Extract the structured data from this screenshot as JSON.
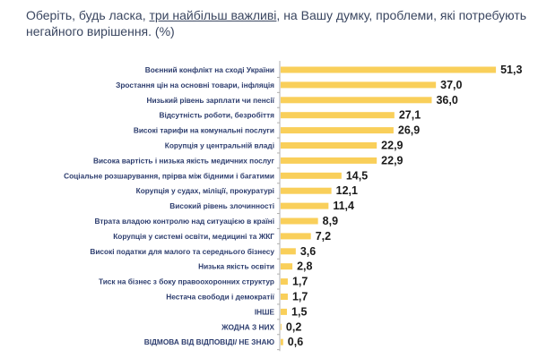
{
  "chart_data": {
    "type": "bar",
    "orientation": "horizontal",
    "title_parts": [
      "Оберіть, будь ласка, ",
      "три найбільш важливі",
      ", на Вашу думку, проблеми, які потребують негайного вирішення. (%)"
    ],
    "categories": [
      "Воєнний конфлікт на сході України",
      "Зростання цін на основні товари, інфляція",
      "Низький рівень зарплати чи пенсії",
      "Відсутність роботи, безробіття",
      "Високі тарифи на комунальні послуги",
      "Корупція у центральній владі",
      "Висока вартість і низька якість медичних послуг",
      "Соціальне розшарування, прірва між бідними і багатими",
      "Корупція у судах, міліції, прокуратурі",
      "Високий рівень злочинності",
      "Втрата владою контролю над ситуацією в країні",
      "Корупція у системі освіти, медицині та ЖКГ",
      "Високі податки для малого та середнього бізнесу",
      "Низька якість освіти",
      "Тиск на бізнес з боку правоохоронних структур",
      "Нестача свободи і демократії",
      "ІНШЕ",
      "ЖОДНА З НИХ",
      "ВІДМОВА ВІД ВІДПОВІДІ/ НЕ ЗНАЮ"
    ],
    "values": [
      51.3,
      37.0,
      36.0,
      27.1,
      26.9,
      22.9,
      22.9,
      14.5,
      12.1,
      11.4,
      8.9,
      7.2,
      3.6,
      2.8,
      1.7,
      1.7,
      1.5,
      0.2,
      0.6
    ],
    "value_labels": [
      "51,3",
      "37,0",
      "36,0",
      "27,1",
      "26,9",
      "22,9",
      "22,9",
      "14,5",
      "12,1",
      "11,4",
      "8,9",
      "7,2",
      "3,6",
      "2,8",
      "1,7",
      "1,7",
      "1,5",
      "0,2",
      "0,6"
    ],
    "xlim": [
      0,
      55
    ],
    "grid": false,
    "bar_color": "#f9cf5a"
  }
}
